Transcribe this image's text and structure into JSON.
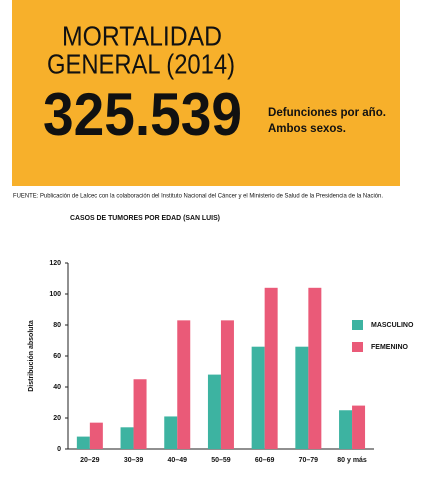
{
  "header": {
    "title_lines": [
      "MORTALIDAD",
      "GENERAL (2014)"
    ],
    "big_number": "325.539",
    "caption_lines": [
      "Defunciones por año.",
      "Ambos sexos."
    ]
  },
  "source": "FUENTE: Publicación de Lalcec con la colaboración del Instituto Nacional del Cáncer y el Ministerio de Salud de la Presidencia de la Nación.",
  "chart_data": {
    "type": "bar",
    "title": "CASOS DE TUMORES POR EDAD (SAN LUIS)",
    "ylabel": "Distribución absoluta",
    "categories": [
      "20–29",
      "30–39",
      "40–49",
      "50–59",
      "60–69",
      "70–79",
      "80 y más"
    ],
    "series": [
      {
        "name": "MASCULINO",
        "color": "#3db3a1",
        "values": [
          8,
          14,
          21,
          48,
          66,
          66,
          25
        ]
      },
      {
        "name": "FEMENINO",
        "color": "#ea5a78",
        "values": [
          17,
          45,
          83,
          83,
          104,
          104,
          28
        ]
      }
    ],
    "ylim": [
      0,
      120
    ],
    "yticks": [
      0,
      20,
      40,
      60,
      80,
      100,
      120
    ],
    "grid": false
  }
}
